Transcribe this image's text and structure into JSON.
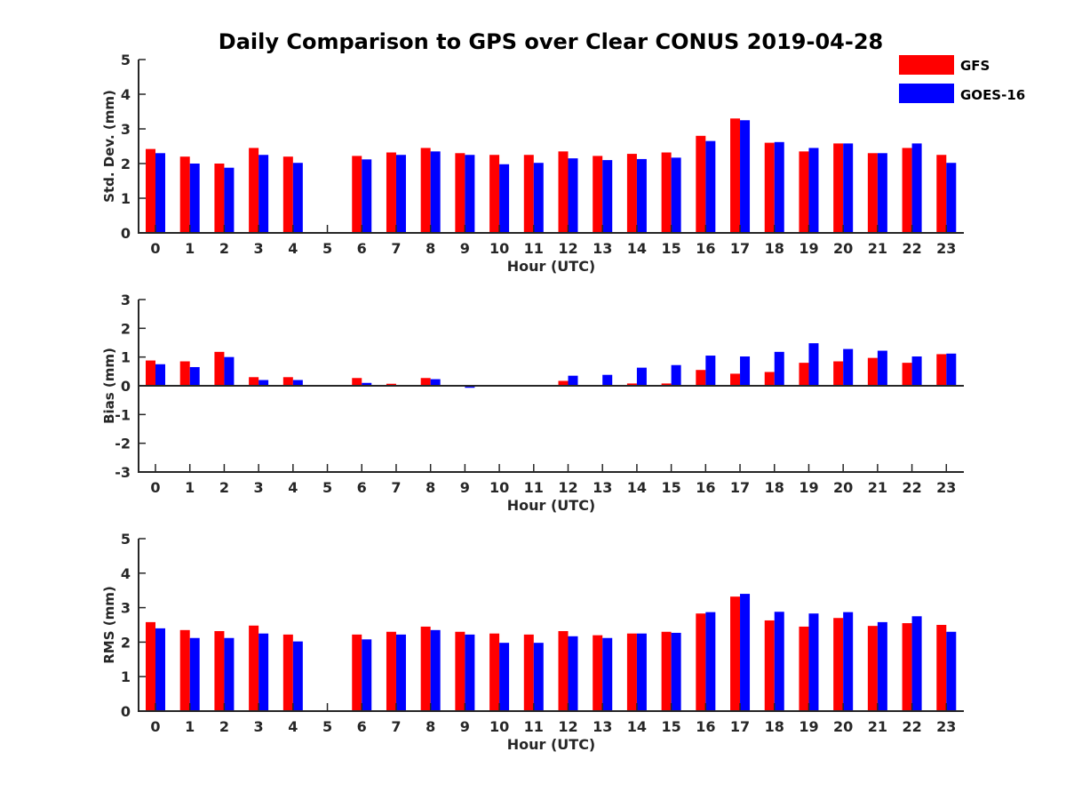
{
  "title": "Daily Comparison to GPS over Clear CONUS 2019-04-28",
  "colors": {
    "GFS": "#ff0000",
    "GOES-16": "#0000ff"
  },
  "legend": [
    "GFS",
    "GOES-16"
  ],
  "chart_data": [
    {
      "type": "bar",
      "title": "Daily Comparison to GPS over Clear CONUS 2019-04-28",
      "xlabel": "Hour (UTC)",
      "ylabel": "Std. Dev. (mm)",
      "ylim": [
        0,
        5
      ],
      "yticks": [
        0,
        1,
        2,
        3,
        4,
        5
      ],
      "categories": [
        "0",
        "1",
        "2",
        "3",
        "4",
        "5",
        "6",
        "7",
        "8",
        "9",
        "10",
        "11",
        "12",
        "13",
        "14",
        "15",
        "16",
        "17",
        "18",
        "19",
        "20",
        "21",
        "22",
        "23"
      ],
      "series": [
        {
          "name": "GFS",
          "values": [
            2.42,
            2.2,
            2.0,
            2.45,
            2.2,
            null,
            2.22,
            2.32,
            2.45,
            2.3,
            2.25,
            2.25,
            2.35,
            2.22,
            2.28,
            2.32,
            2.8,
            3.3,
            2.6,
            2.35,
            2.58,
            2.3,
            2.45,
            2.25
          ]
        },
        {
          "name": "GOES-16",
          "values": [
            2.3,
            2.0,
            1.88,
            2.25,
            2.02,
            null,
            2.12,
            2.25,
            2.35,
            2.25,
            1.98,
            2.02,
            2.15,
            2.1,
            2.13,
            2.17,
            2.65,
            3.25,
            2.62,
            2.45,
            2.58,
            2.3,
            2.58,
            2.02
          ]
        }
      ]
    },
    {
      "type": "bar",
      "xlabel": "Hour (UTC)",
      "ylabel": "Bias (mm)",
      "ylim": [
        -3,
        3
      ],
      "yticks": [
        -3,
        -2,
        -1,
        0,
        1,
        2,
        3
      ],
      "categories": [
        "0",
        "1",
        "2",
        "3",
        "4",
        "5",
        "6",
        "7",
        "8",
        "9",
        "10",
        "11",
        "12",
        "13",
        "14",
        "15",
        "16",
        "17",
        "18",
        "19",
        "20",
        "21",
        "22",
        "23"
      ],
      "series": [
        {
          "name": "GFS",
          "values": [
            0.88,
            0.85,
            1.18,
            0.3,
            0.3,
            null,
            0.27,
            0.07,
            0.27,
            0.0,
            0.03,
            -0.02,
            0.17,
            0.03,
            0.08,
            0.08,
            0.55,
            0.42,
            0.48,
            0.8,
            0.85,
            0.97,
            0.8,
            1.1
          ]
        },
        {
          "name": "GOES-16",
          "values": [
            0.75,
            0.65,
            1.0,
            0.2,
            0.2,
            null,
            0.1,
            0.02,
            0.23,
            -0.07,
            -0.03,
            -0.02,
            0.35,
            0.38,
            0.63,
            0.72,
            1.05,
            1.02,
            1.18,
            1.48,
            1.28,
            1.22,
            1.02,
            1.12
          ]
        }
      ]
    },
    {
      "type": "bar",
      "xlabel": "Hour (UTC)",
      "ylabel": "RMS (mm)",
      "ylim": [
        0,
        5
      ],
      "yticks": [
        0,
        1,
        2,
        3,
        4,
        5
      ],
      "categories": [
        "0",
        "1",
        "2",
        "3",
        "4",
        "5",
        "6",
        "7",
        "8",
        "9",
        "10",
        "11",
        "12",
        "13",
        "14",
        "15",
        "16",
        "17",
        "18",
        "19",
        "20",
        "21",
        "22",
        "23"
      ],
      "series": [
        {
          "name": "GFS",
          "values": [
            2.58,
            2.35,
            2.32,
            2.48,
            2.22,
            null,
            2.22,
            2.3,
            2.45,
            2.3,
            2.25,
            2.22,
            2.32,
            2.2,
            2.25,
            2.3,
            2.83,
            3.32,
            2.63,
            2.45,
            2.7,
            2.47,
            2.55,
            2.5
          ]
        },
        {
          "name": "GOES-16",
          "values": [
            2.4,
            2.12,
            2.12,
            2.25,
            2.02,
            null,
            2.08,
            2.22,
            2.35,
            2.22,
            1.98,
            1.98,
            2.17,
            2.12,
            2.25,
            2.27,
            2.87,
            3.4,
            2.88,
            2.83,
            2.87,
            2.58,
            2.75,
            2.3
          ]
        }
      ]
    }
  ]
}
